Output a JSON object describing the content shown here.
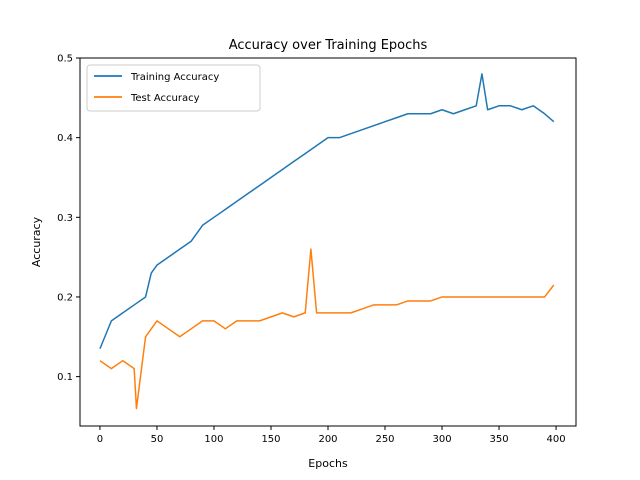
{
  "chart_data": {
    "type": "line",
    "title": "Accuracy over Training Epochs",
    "xlabel": "Epochs",
    "ylabel": "Accuracy",
    "xlim": [
      -17.5,
      417.5
    ],
    "ylim": [
      0.038,
      0.5
    ],
    "xticks": [
      0,
      50,
      100,
      150,
      200,
      250,
      300,
      350,
      400
    ],
    "yticks": [
      0.1,
      0.2,
      0.3,
      0.4,
      0.5
    ],
    "grid": false,
    "legend_position": "top-left",
    "series": [
      {
        "name": "Training Accuracy",
        "color": "#1f77b4",
        "x": [
          0,
          10,
          20,
          30,
          40,
          45,
          50,
          60,
          70,
          80,
          90,
          100,
          110,
          120,
          130,
          140,
          150,
          160,
          170,
          180,
          190,
          200,
          210,
          220,
          230,
          240,
          250,
          260,
          270,
          280,
          290,
          300,
          310,
          320,
          330,
          335,
          340,
          350,
          360,
          370,
          380,
          390,
          398
        ],
        "y": [
          0.135,
          0.17,
          0.18,
          0.19,
          0.2,
          0.23,
          0.24,
          0.25,
          0.26,
          0.27,
          0.29,
          0.3,
          0.31,
          0.32,
          0.33,
          0.34,
          0.35,
          0.36,
          0.37,
          0.38,
          0.39,
          0.4,
          0.4,
          0.405,
          0.41,
          0.415,
          0.42,
          0.425,
          0.43,
          0.43,
          0.43,
          0.435,
          0.43,
          0.435,
          0.44,
          0.48,
          0.435,
          0.44,
          0.44,
          0.435,
          0.44,
          0.43,
          0.42
        ]
      },
      {
        "name": "Test Accuracy",
        "color": "#ff7f0e",
        "x": [
          0,
          10,
          20,
          30,
          32,
          40,
          50,
          60,
          70,
          80,
          90,
          100,
          110,
          120,
          130,
          140,
          150,
          160,
          170,
          180,
          185,
          190,
          200,
          210,
          220,
          230,
          240,
          250,
          260,
          270,
          280,
          290,
          300,
          310,
          320,
          330,
          340,
          350,
          360,
          370,
          380,
          390,
          398
        ],
        "y": [
          0.12,
          0.11,
          0.12,
          0.11,
          0.06,
          0.15,
          0.17,
          0.16,
          0.15,
          0.16,
          0.17,
          0.17,
          0.16,
          0.17,
          0.17,
          0.17,
          0.175,
          0.18,
          0.175,
          0.18,
          0.26,
          0.18,
          0.18,
          0.18,
          0.18,
          0.185,
          0.19,
          0.19,
          0.19,
          0.195,
          0.195,
          0.195,
          0.2,
          0.2,
          0.2,
          0.2,
          0.2,
          0.2,
          0.2,
          0.2,
          0.2,
          0.2,
          0.215
        ]
      }
    ]
  }
}
